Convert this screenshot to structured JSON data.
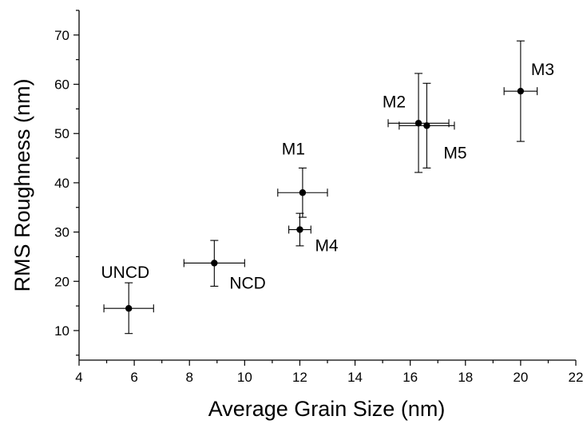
{
  "chart_data": {
    "type": "scatter",
    "xlabel": "Average Grain Size (nm)",
    "ylabel": "RMS Roughness (nm)",
    "xlim": [
      4,
      22
    ],
    "ylim": [
      4,
      75
    ],
    "x_ticks": [
      4,
      6,
      8,
      10,
      12,
      14,
      16,
      18,
      20,
      22
    ],
    "y_ticks": [
      10,
      20,
      30,
      40,
      50,
      60,
      70
    ],
    "grid": false,
    "legend": "none",
    "points": [
      {
        "label": "UNCD",
        "x": 5.8,
        "y": 14.5,
        "xerr": 0.9,
        "yerr": [
          5.1,
          5.2
        ],
        "label_pos": "above-left"
      },
      {
        "label": "NCD",
        "x": 8.9,
        "y": 23.7,
        "xerr": 1.1,
        "yerr": [
          4.7,
          4.6
        ],
        "label_pos": "below-right"
      },
      {
        "label": "M1",
        "x": 12.1,
        "y": 38.0,
        "xerr": 0.9,
        "yerr": [
          5.0,
          5.0
        ],
        "label_pos": "above-left"
      },
      {
        "label": "M4",
        "x": 12.0,
        "y": 30.5,
        "xerr": 0.4,
        "yerr": [
          3.3,
          3.3
        ],
        "label_pos": "below-right"
      },
      {
        "label": "M2",
        "x": 16.3,
        "y": 52.1,
        "xerr": 1.1,
        "yerr": [
          10.0,
          10.1
        ],
        "label_pos": "above-left"
      },
      {
        "label": "M5",
        "x": 16.6,
        "y": 51.6,
        "xerr": 1.0,
        "yerr": [
          8.6,
          8.6
        ],
        "label_pos": "below-right"
      },
      {
        "label": "M3",
        "x": 20.0,
        "y": 58.6,
        "xerr": 0.6,
        "yerr": [
          10.2,
          10.2
        ],
        "label_pos": "above-right"
      }
    ]
  }
}
